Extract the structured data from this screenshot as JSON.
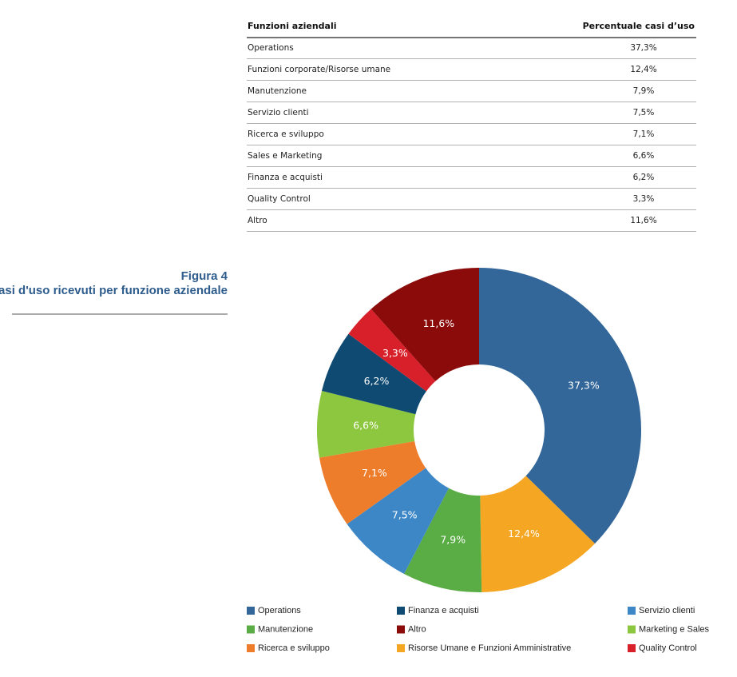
{
  "table": {
    "header": [
      "Funzioni aziendali",
      "Percentuale casi d’uso"
    ],
    "rows": [
      [
        "Operations",
        "37,3%"
      ],
      [
        "Funzioni corporate/Risorse umane",
        "12,4%"
      ],
      [
        "Manutenzione",
        "7,9%"
      ],
      [
        "Servizio clienti",
        "7,5%"
      ],
      [
        "Ricerca e sviluppo",
        "7,1%"
      ],
      [
        "Sales e Marketing",
        "6,6%"
      ],
      [
        "Finanza e acquisti",
        "6,2%"
      ],
      [
        "Quality Control",
        "3,3%"
      ],
      [
        "Altro",
        "11,6%"
      ]
    ]
  },
  "figure": {
    "label": "Figura 4",
    "title": "I casi d'uso ricevuti per funzione aziendale"
  },
  "chart_data": {
    "type": "donut",
    "categories": [
      "Operations",
      "Risorse Umane e Funzioni Amministrative",
      "Manutenzione",
      "Servizio clienti",
      "Ricerca e sviluppo",
      "Marketing e Sales",
      "Finanza e acquisti",
      "Quality Control",
      "Altro"
    ],
    "values": [
      37.3,
      12.4,
      7.9,
      7.5,
      7.1,
      6.6,
      6.2,
      3.3,
      11.6
    ],
    "value_labels": [
      "37,3%",
      "12,4%",
      "7,9%",
      "7,5%",
      "7,1%",
      "6,6%",
      "6,2%",
      "3,3%",
      "11,6%"
    ],
    "colors": [
      "#336699",
      "#f5a623",
      "#5aac44",
      "#3e87c7",
      "#ee7d2b",
      "#8dc63f",
      "#0e4a72",
      "#d7202a",
      "#8b0a0a"
    ]
  }
}
